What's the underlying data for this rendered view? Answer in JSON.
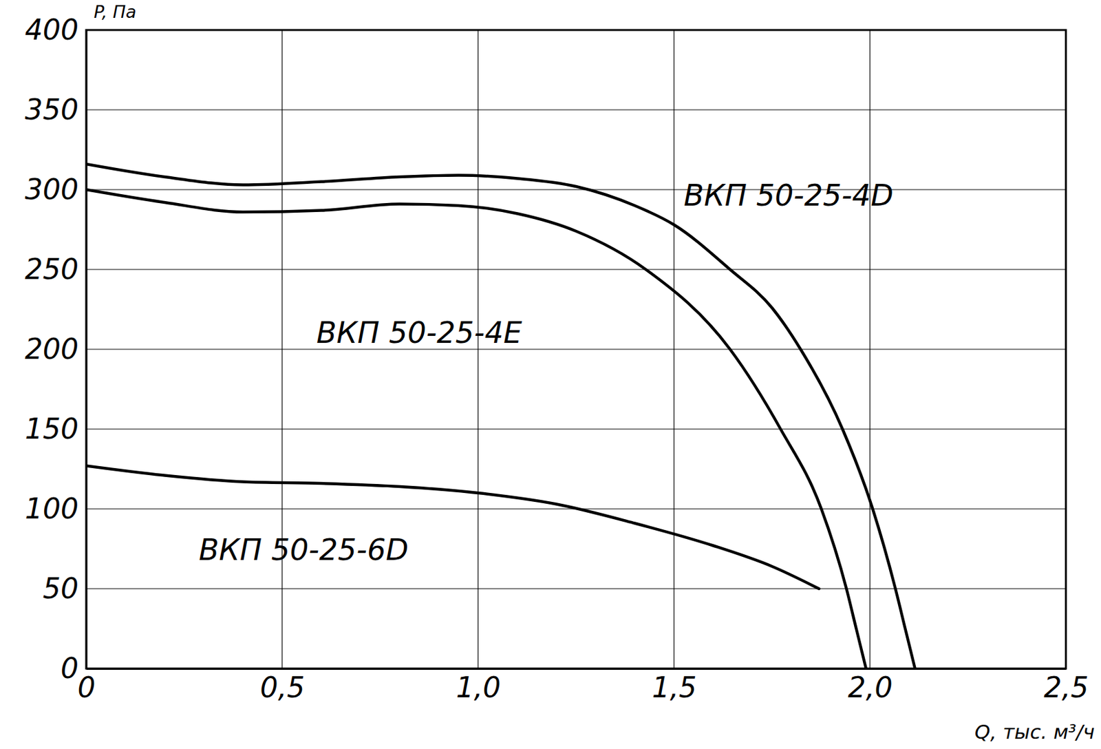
{
  "chart_data": {
    "type": "line",
    "x_label": "Q, тыс. м³/ч",
    "y_label": "P, Па",
    "xlim": [
      0,
      2.5
    ],
    "ylim": [
      0,
      400
    ],
    "xticks": [
      0,
      {
        "value": 0.5,
        "label": "0,5"
      },
      {
        "value": 1,
        "label": "1,0"
      },
      {
        "value": 1.5,
        "label": "1,5"
      },
      {
        "value": 2,
        "label": "2,0"
      },
      {
        "value": 2.5,
        "label": "2,5"
      }
    ],
    "yticks": [
      0,
      50,
      100,
      150,
      200,
      250,
      300,
      350,
      400
    ],
    "grid": true,
    "series": [
      {
        "name": "ВКП 50-25-4D",
        "color": "#000000",
        "x": [
          0,
          0.2,
          0.4,
          0.6,
          0.8,
          0.95,
          1.1,
          1.25,
          1.4,
          1.5,
          1.643,
          1.75,
          1.823,
          1.93,
          2.007,
          2.065,
          2.09,
          2.115
        ],
        "values": [
          316,
          308,
          303,
          305,
          308,
          309,
          307,
          302,
          290,
          278,
          250,
          226,
          200,
          150,
          100,
          50,
          25,
          0
        ]
      },
      {
        "name": "ВКП 50-25-4E",
        "color": "#000000",
        "x": [
          0,
          0.2,
          0.4,
          0.6,
          0.8,
          0.95,
          1.1,
          1.25,
          1.428,
          1.643,
          1.772,
          1.876,
          1.94,
          1.965,
          1.99
        ],
        "values": [
          300,
          292,
          286,
          287,
          291,
          290,
          285,
          274,
          250,
          200,
          150,
          100,
          50,
          25,
          0
        ]
      },
      {
        "name": "ВКП 50-25-6D",
        "color": "#000000",
        "x": [
          0,
          0.2,
          0.4,
          0.6,
          0.8,
          1.0,
          1.2,
          1.4,
          1.6,
          1.75,
          1.87
        ],
        "values": [
          127,
          121,
          117,
          116,
          114,
          110,
          103,
          91,
          77,
          64,
          50
        ]
      }
    ]
  }
}
